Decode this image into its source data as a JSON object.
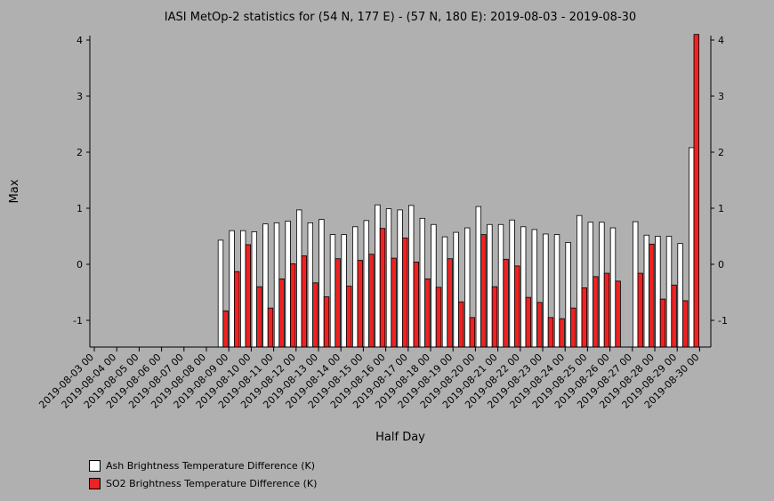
{
  "chart_data": {
    "type": "bar",
    "title": "IASI MetOp-2 statistics for (54 N, 177 E) - (57 N, 180 E): 2019-08-03 - 2019-08-30",
    "xlabel": "Half Day",
    "ylabel": "Max",
    "ylim": [
      -1.45,
      4.1
    ],
    "yticks": [
      -1,
      0,
      1,
      2,
      3,
      4
    ],
    "xtick_labels": [
      "2019-08-03 00",
      "2019-08-04 00",
      "2019-08-05 00",
      "2019-08-06 00",
      "2019-08-07 00",
      "2019-08-08 00",
      "2019-08-09 00",
      "2019-08-10 00",
      "2019-08-11 00",
      "2019-08-12 00",
      "2019-08-13 00",
      "2019-08-14 00",
      "2019-08-15 00",
      "2019-08-16 00",
      "2019-08-17 00",
      "2019-08-18 00",
      "2019-08-19 00",
      "2019-08-20 00",
      "2019-08-21 00",
      "2019-08-22 00",
      "2019-08-23 00",
      "2019-08-24 00",
      "2019-08-25 00",
      "2019-08-26 00",
      "2019-08-27 00",
      "2019-08-28 00",
      "2019-08-29 00",
      "2019-08-30 00"
    ],
    "x_period_start": [
      "2019-08-08 12",
      "2019-08-09 00",
      "2019-08-09 12",
      "2019-08-10 00",
      "2019-08-10 12",
      "2019-08-11 00",
      "2019-08-11 12",
      "2019-08-12 00",
      "2019-08-12 12",
      "2019-08-13 00",
      "2019-08-13 12",
      "2019-08-14 00",
      "2019-08-14 12",
      "2019-08-15 00",
      "2019-08-15 12",
      "2019-08-16 00",
      "2019-08-16 12",
      "2019-08-17 00",
      "2019-08-17 12",
      "2019-08-18 00",
      "2019-08-18 12",
      "2019-08-19 00",
      "2019-08-19 12",
      "2019-08-20 00",
      "2019-08-20 12",
      "2019-08-21 00",
      "2019-08-21 12",
      "2019-08-22 00",
      "2019-08-22 12",
      "2019-08-23 00",
      "2019-08-23 12",
      "2019-08-24 00",
      "2019-08-24 12",
      "2019-08-25 00",
      "2019-08-25 12",
      "2019-08-26 00",
      "2019-08-26 12",
      "2019-08-27 00",
      "2019-08-27 12",
      "2019-08-28 00",
      "2019-08-28 12",
      "2019-08-29 00",
      "2019-08-29 12"
    ],
    "series": [
      {
        "name": "Ash Brightness Temperature Difference (K)",
        "color": "#ffffff",
        "values": [
          0.43,
          0.6,
          0.6,
          0.58,
          0.72,
          0.74,
          0.77,
          0.97,
          0.74,
          0.8,
          0.53,
          0.53,
          0.67,
          0.78,
          1.06,
          0.99,
          0.97,
          1.05,
          0.82,
          0.71,
          0.49,
          0.57,
          0.65,
          1.03,
          0.71,
          0.71,
          0.79,
          0.67,
          0.62,
          0.54,
          0.53,
          0.39,
          0.87,
          0.75,
          0.75,
          0.65,
          null,
          0.76,
          0.52,
          0.5,
          0.5,
          0.37,
          2.08
        ]
      },
      {
        "name": "SO2 Brightness Temperature Difference (K)",
        "color": "#ee2222",
        "values": [
          -0.83,
          -0.13,
          0.35,
          -0.4,
          -0.78,
          -0.26,
          0.01,
          0.15,
          -0.33,
          -0.58,
          0.1,
          -0.39,
          0.07,
          0.18,
          0.64,
          0.11,
          0.47,
          0.04,
          -0.26,
          -0.41,
          0.1,
          -0.67,
          -0.95,
          0.53,
          -0.4,
          0.09,
          -0.03,
          -0.59,
          -0.68,
          -0.95,
          -0.97,
          -0.78,
          -0.42,
          -0.22,
          -0.16,
          -0.3,
          null,
          -0.16,
          0.36,
          -0.62,
          -0.37,
          -0.65,
          4.1
        ]
      }
    ],
    "legend_position": "bottom-left",
    "grid": false
  }
}
